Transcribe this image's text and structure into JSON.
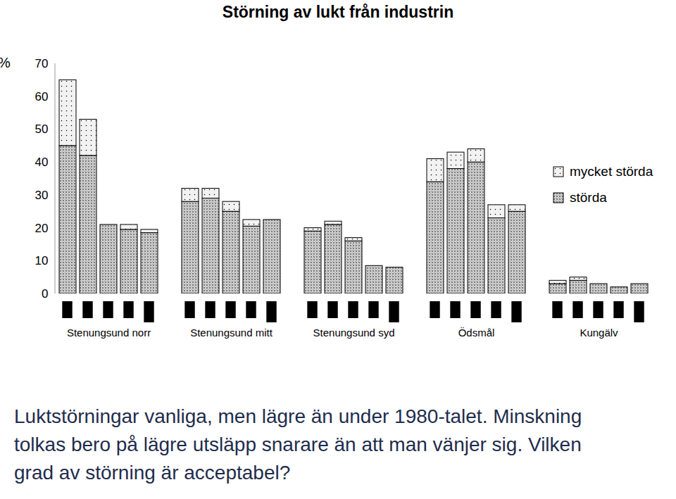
{
  "chart_data": {
    "type": "bar",
    "title": "Störning av lukt från industrin",
    "ylabel": "%",
    "caption": "Luktstörningar vanliga, men lägre än under 1980-talet. Minskning tolkas bero på lägre utsläpp snarare än att man vänjer sig. Vilken grad av störning är acceptabel?",
    "categories": [
      null,
      null,
      "Stenungsund norr",
      null,
      null,
      null,
      null,
      "Stenungsund mitt",
      null,
      null,
      null,
      null,
      "Stenungsund syd",
      null,
      null,
      null,
      null,
      "Ödsmål",
      null,
      null,
      null,
      null,
      "Kungälv",
      null,
      null
    ],
    "series": [
      {
        "name": "störda",
        "color": "#cfcfcf",
        "values": [
          45,
          42,
          21,
          19.5,
          18.5,
          28,
          29,
          25,
          20.5,
          22.5,
          19,
          21,
          16,
          8.5,
          8,
          34,
          38,
          40,
          23,
          25,
          3,
          4,
          3,
          2,
          3
        ]
      },
      {
        "name": "mycket störda",
        "color": "#f2f2f2",
        "values": [
          20,
          11,
          0,
          1.5,
          1,
          4,
          3,
          3,
          2,
          0,
          1,
          1,
          1,
          0,
          0,
          7,
          5,
          4,
          4,
          2,
          1,
          1,
          0,
          0,
          0
        ]
      }
    ],
    "stacked": true,
    "legend": "top-right",
    "ylim": [
      0,
      70
    ],
    "yticks": [
      0,
      10,
      20,
      30,
      40,
      50,
      60,
      70
    ]
  }
}
